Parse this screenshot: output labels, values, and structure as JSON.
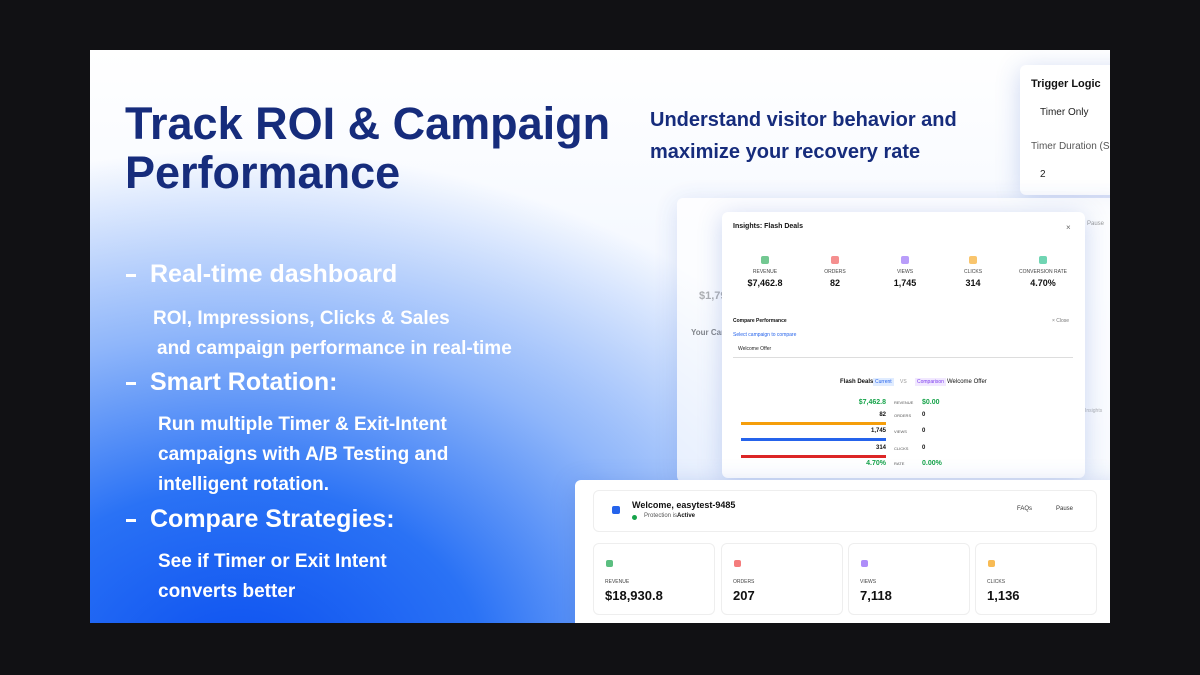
{
  "headline": {
    "lines": [
      "Track ROI & Campaign",
      "Performance"
    ]
  },
  "subheadline": {
    "lines": [
      "Understand visitor behavior and",
      "maximize your recovery rate"
    ]
  },
  "features": [
    {
      "title": "Real-time dashboard",
      "lines": [
        "ROI, Impressions, Clicks & Sales",
        "and campaign performance in real-time"
      ]
    },
    {
      "title": "Smart Rotation:",
      "lines": [
        "Run multiple Timer & Exit-Intent",
        "campaigns with A/B Testing and",
        "intelligent rotation."
      ]
    },
    {
      "title": "Compare Strategies:",
      "lines": [
        "See if Timer or Exit Intent",
        "converts better"
      ]
    }
  ],
  "trigger_panel": {
    "title": "Trigger Logic",
    "mode": "Timer Only",
    "duration_label": "Timer Duration (Se",
    "duration": "2"
  },
  "background_dashboard": {
    "pause": "Pause",
    "revenue": "$1,79",
    "campaigns": "Your Cam",
    "insights": "Insights"
  },
  "insights_modal": {
    "title": "Insights: Flash Deals",
    "close_icon": "×",
    "metrics": [
      {
        "label": "REVENUE",
        "value": "$7,462.8",
        "color": "#16a34a"
      },
      {
        "label": "ORDERS",
        "value": "82",
        "color": "#ef4444"
      },
      {
        "label": "VIEWS",
        "value": "1,745",
        "color": "#8b5cf6"
      },
      {
        "label": "CLICKS",
        "value": "314",
        "color": "#f59e0b"
      },
      {
        "label": "CONVERSION RATE",
        "value": "4.70%",
        "color": "#10b981"
      }
    ],
    "compare": {
      "title": "Compare Performance",
      "close": "× Close",
      "prompt": "Select campaign to compare",
      "selected": "Welcome Offer",
      "current_name": "Flash Deals",
      "current_badge": "Current",
      "vs": "VS",
      "comparison_badge": "Comparison",
      "comparison_name": "Welcome Offer",
      "rows": [
        {
          "label": "REVENUE",
          "current": "$7,462.8",
          "comparison": "$0.00"
        },
        {
          "label": "ORDERS",
          "current": "82",
          "comparison": "0",
          "color": "#f59e0b"
        },
        {
          "label": "VIEWS",
          "current": "1,745",
          "comparison": "0",
          "color": "#2563eb"
        },
        {
          "label": "CLICKS",
          "current": "314",
          "comparison": "0",
          "color": "#dc2626"
        },
        {
          "label": "RATE",
          "current": "4.70%",
          "comparison": "0.00%"
        }
      ]
    }
  },
  "dashboard": {
    "welcome": "Welcome, easytest-9485",
    "protection": "Protection is",
    "status": "Active",
    "faqs": "FAQs",
    "pause": "Pause",
    "cards": [
      {
        "label": "REVENUE",
        "value": "$18,930.8",
        "color": "#16a34a"
      },
      {
        "label": "ORDERS",
        "value": "207",
        "color": "#ef4444"
      },
      {
        "label": "VIEWS",
        "value": "7,118",
        "color": "#8b5cf6"
      },
      {
        "label": "CLICKS",
        "value": "1,136",
        "color": "#f59e0b"
      }
    ]
  }
}
